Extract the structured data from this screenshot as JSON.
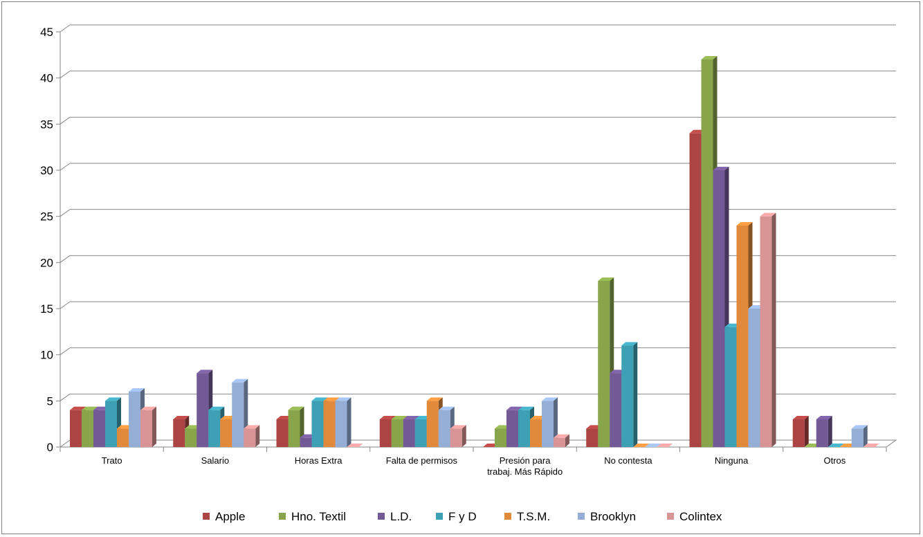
{
  "chart_data": {
    "type": "bar",
    "title": "",
    "xlabel": "",
    "ylabel": "",
    "ylim": [
      0,
      45
    ],
    "yticks": [
      0,
      5,
      10,
      15,
      20,
      25,
      30,
      35,
      40,
      45
    ],
    "grid": true,
    "legend": "bottom",
    "categories": [
      [
        "Trato"
      ],
      [
        "Salario"
      ],
      [
        "Horas Extra"
      ],
      [
        "Falta de permisos"
      ],
      [
        "Presión para",
        "trabaj. Más Rápido"
      ],
      [
        "No contesta"
      ],
      [
        "Ninguna"
      ],
      [
        "Otros"
      ]
    ],
    "series": [
      {
        "name": "Apple",
        "color": "#ab4442",
        "values": [
          4,
          3,
          3,
          3,
          0,
          2,
          34,
          3
        ]
      },
      {
        "name": "Hno. Textil",
        "color": "#88a54b",
        "values": [
          4,
          2,
          4,
          3,
          2,
          18,
          42,
          0
        ]
      },
      {
        "name": "L.D.",
        "color": "#735996",
        "values": [
          4,
          8,
          1,
          3,
          4,
          8,
          30,
          3
        ]
      },
      {
        "name": "F y D",
        "color": "#3ea0b4",
        "values": [
          5,
          4,
          5,
          3,
          4,
          11,
          13,
          0
        ]
      },
      {
        "name": "T.S.M.",
        "color": "#e28a3b",
        "values": [
          2,
          3,
          5,
          5,
          3,
          0,
          24,
          0
        ]
      },
      {
        "name": "Brooklyn",
        "color": "#94aed6",
        "values": [
          6,
          7,
          5,
          4,
          5,
          0,
          15,
          2
        ]
      },
      {
        "name": "Colintex",
        "color": "#d99595",
        "values": [
          4,
          2,
          0,
          2,
          1,
          0,
          25,
          0
        ]
      }
    ]
  }
}
